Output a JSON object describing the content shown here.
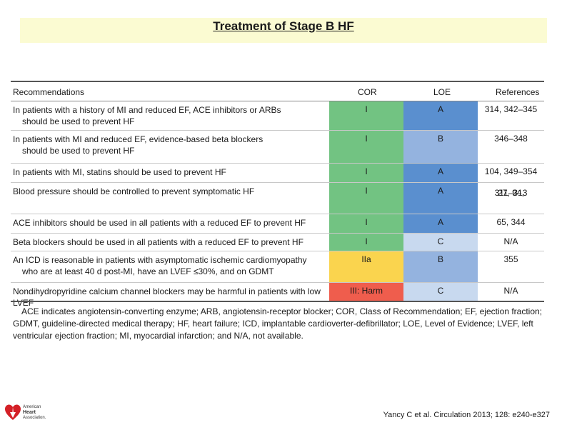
{
  "slide": {
    "title": "Treatment of Stage B HF"
  },
  "table": {
    "headers": {
      "recommendations": "Recommendations",
      "cor": "COR",
      "loe": "LOE",
      "references": "References"
    },
    "rows": [
      {
        "line1": "In patients with a history of MI and reduced EF, ACE inhibitors or ARBs",
        "line2": "should be used to prevent HF",
        "cor": "I",
        "loe": "A",
        "ref1": "314, 342–345",
        "ref2": ""
      },
      {
        "line1": "In patients with MI and reduced EF, evidence-based beta blockers",
        "line2": "should be used to prevent HF",
        "cor": "I",
        "loe": "B",
        "ref1": "346–348",
        "ref2": ""
      },
      {
        "line1": "In patients with MI, statins should be used to prevent HF",
        "line2": "",
        "cor": "I",
        "loe": "A",
        "ref1": "104, 349–354",
        "ref2": ""
      },
      {
        "line1": "Blood pressure should be controlled to prevent symptomatic HF",
        "line2": "",
        "cor": "I",
        "loe": "A",
        "ref1": "27, 94,",
        "ref2": "311–313"
      },
      {
        "line1": "ACE inhibitors should be used in all patients with a reduced EF to prevent HF",
        "line2": "",
        "cor": "I",
        "loe": "A",
        "ref1": "65, 344",
        "ref2": ""
      },
      {
        "line1": "Beta blockers should be used in all patients with a reduced EF to prevent HF",
        "line2": "",
        "cor": "I",
        "loe": "C",
        "ref1": "N/A",
        "ref2": ""
      },
      {
        "line1": "An ICD is reasonable in patients with asymptomatic ischemic cardiomyopathy",
        "line2": "who are at least 40 d post-MI, have an LVEF ≤30%, and on GDMT",
        "cor": "IIa",
        "loe": "B",
        "ref1": "355",
        "ref2": ""
      },
      {
        "line1": "Nondihydropyridine calcium channel blockers may be harmful in patients with low LVEF",
        "line2": "",
        "cor": "III: Harm",
        "loe": "C",
        "ref1": "N/A",
        "ref2": ""
      }
    ],
    "footnote": "ACE indicates angiotensin-converting enzyme; ARB, angiotensin-receptor blocker; COR, Class of Recommendation; EF, ejection fraction; GDMT, guideline-directed medical therapy; HF, heart failure; ICD, implantable cardioverter-defibrillator; LOE, Level of Evidence; LVEF, left ventricular ejection fraction; MI, myocardial infarction; and N/A, not available."
  },
  "colors": {
    "cor_I": "#72c382",
    "cor_IIa": "#fad44e",
    "cor_III_harm": "#ef5d4d",
    "loe_A": "#5a8fcf",
    "loe_B": "#94b3df",
    "loe_C": "#c8d9ef",
    "title_band": "#fbfbd2"
  },
  "logo": {
    "name": "American Heart Association",
    "line1": "American",
    "line2": "Heart",
    "line3": "Association."
  },
  "citation": "Yancy C et al. Circulation 2013; 128: e240-e327"
}
